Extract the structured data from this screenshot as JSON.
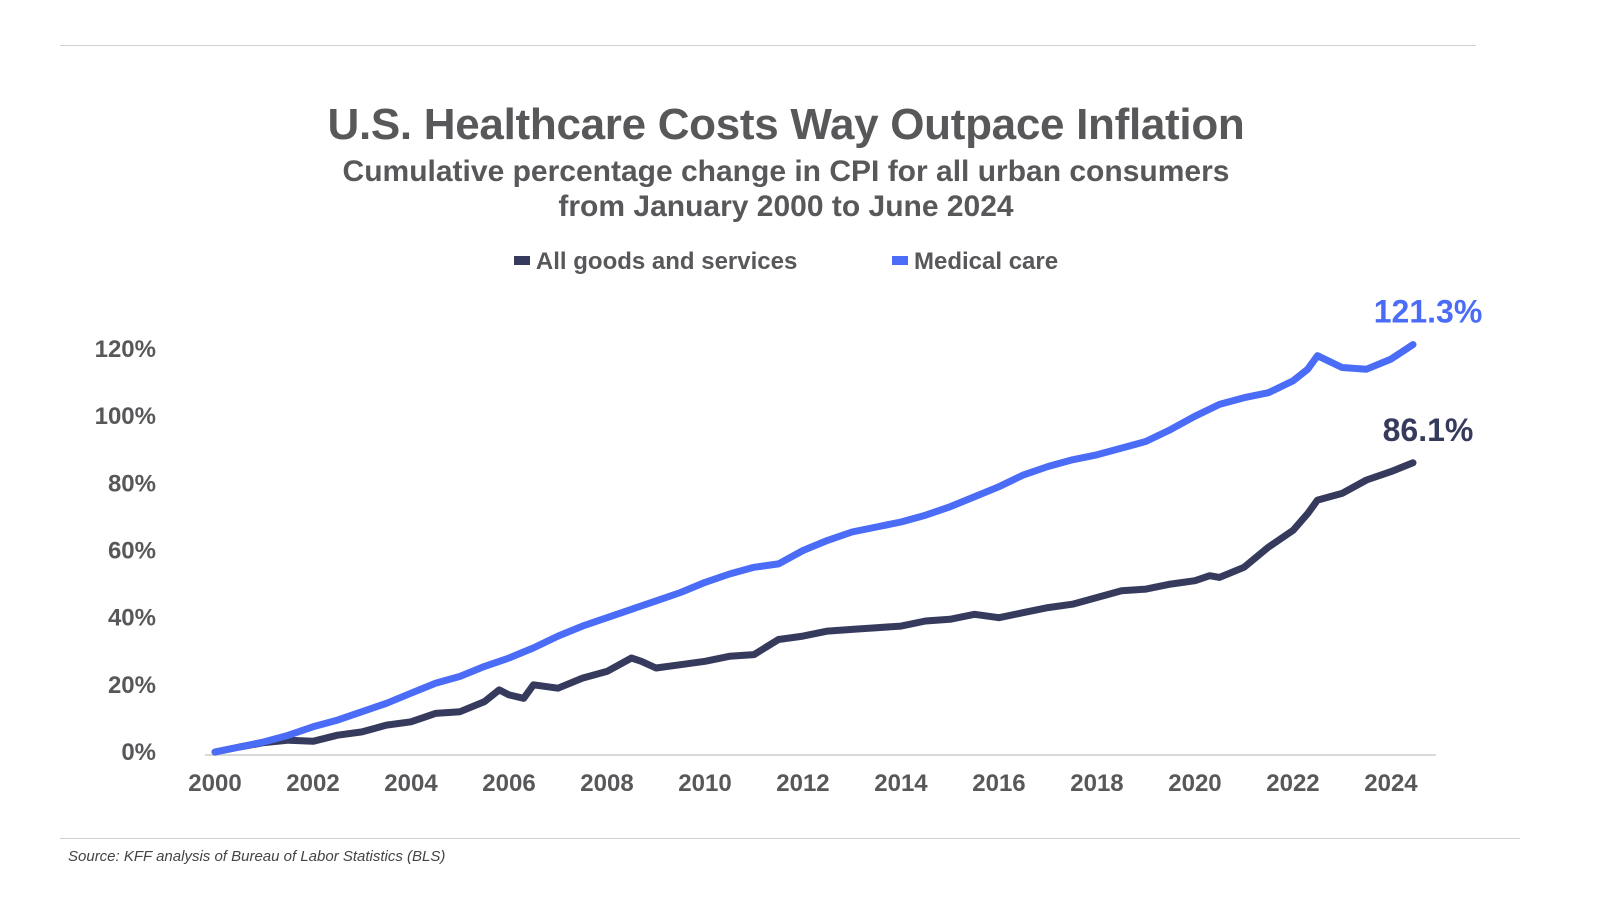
{
  "chart_data": {
    "type": "line",
    "title": "U.S. Healthcare Costs Way Outpace Inflation",
    "subtitle_line1": "Cumulative percentage change in CPI for all urban consumers",
    "subtitle_line2": "from January 2000 to June 2024",
    "xlabel": "",
    "ylabel": "",
    "xlim": [
      2000,
      2024.45
    ],
    "ylim": [
      0,
      120
    ],
    "x_ticks": [
      "2000",
      "2002",
      "2004",
      "2006",
      "2008",
      "2010",
      "2012",
      "2014",
      "2016",
      "2018",
      "2020",
      "2022",
      "2024"
    ],
    "y_ticks": [
      "0%",
      "20%",
      "40%",
      "60%",
      "80%",
      "100%",
      "120%"
    ],
    "grid": false,
    "legend_position": "top-center",
    "series": [
      {
        "name": "All goods and services",
        "color": "#363b5e",
        "end_label": "86.1%",
        "x": [
          2000,
          2000.5,
          2001,
          2001.5,
          2002,
          2002.5,
          2003,
          2003.5,
          2004,
          2004.5,
          2005,
          2005.5,
          2005.8,
          2006,
          2006.3,
          2006.5,
          2007,
          2007.5,
          2008,
          2008.5,
          2008.7,
          2009,
          2009.5,
          2010,
          2010.5,
          2011,
          2011.5,
          2012,
          2012.5,
          2013,
          2013.5,
          2014,
          2014.5,
          2015,
          2015.5,
          2016,
          2016.5,
          2017,
          2017.5,
          2018,
          2018.5,
          2019,
          2019.5,
          2020,
          2020.3,
          2020.5,
          2021,
          2021.5,
          2022,
          2022.3,
          2022.5,
          2023,
          2023.5,
          2024,
          2024.45
        ],
        "values": [
          0,
          1.5,
          2.8,
          3.5,
          3.2,
          5.0,
          6.0,
          8.0,
          9.0,
          11.5,
          12.0,
          15.0,
          18.5,
          17.0,
          16.0,
          20.0,
          19.0,
          22.0,
          24.0,
          28.0,
          27.0,
          25.0,
          26.0,
          27.0,
          28.5,
          29.0,
          33.5,
          34.5,
          36.0,
          36.5,
          37.0,
          37.5,
          39.0,
          39.5,
          41.0,
          40.0,
          41.5,
          43.0,
          44.0,
          46.0,
          48.0,
          48.5,
          50.0,
          51.0,
          52.5,
          52.0,
          55.0,
          61.0,
          66.0,
          71.0,
          75.0,
          77.0,
          81.0,
          83.5,
          86.1
        ]
      },
      {
        "name": "Medical care",
        "color": "#4a6cf7",
        "end_label": "121.3%",
        "x": [
          2000,
          2000.5,
          2001,
          2001.5,
          2002,
          2002.5,
          2003,
          2003.5,
          2004,
          2004.5,
          2005,
          2005.5,
          2006,
          2006.5,
          2007,
          2007.5,
          2008,
          2008.5,
          2009,
          2009.5,
          2010,
          2010.5,
          2011,
          2011.5,
          2012,
          2012.5,
          2013,
          2013.5,
          2014,
          2014.5,
          2015,
          2015.5,
          2016,
          2016.5,
          2017,
          2017.5,
          2018,
          2018.5,
          2019,
          2019.5,
          2020,
          2020.5,
          2021,
          2021.5,
          2022,
          2022.3,
          2022.5,
          2023,
          2023.5,
          2024,
          2024.45
        ],
        "values": [
          0,
          1.5,
          3.0,
          5.0,
          7.5,
          9.5,
          12.0,
          14.5,
          17.5,
          20.5,
          22.5,
          25.5,
          28.0,
          31.0,
          34.5,
          37.5,
          40.0,
          42.5,
          45.0,
          47.5,
          50.5,
          53.0,
          55.0,
          56.0,
          60.0,
          63.0,
          65.5,
          67.0,
          68.5,
          70.5,
          73.0,
          76.0,
          79.0,
          82.5,
          85.0,
          87.0,
          88.5,
          90.5,
          92.5,
          96.0,
          100.0,
          103.5,
          105.5,
          107.0,
          110.5,
          114.0,
          118.0,
          114.5,
          114.0,
          117.0,
          121.3
        ]
      }
    ]
  },
  "source": "Source: KFF analysis of Bureau of Labor Statistics (BLS)"
}
